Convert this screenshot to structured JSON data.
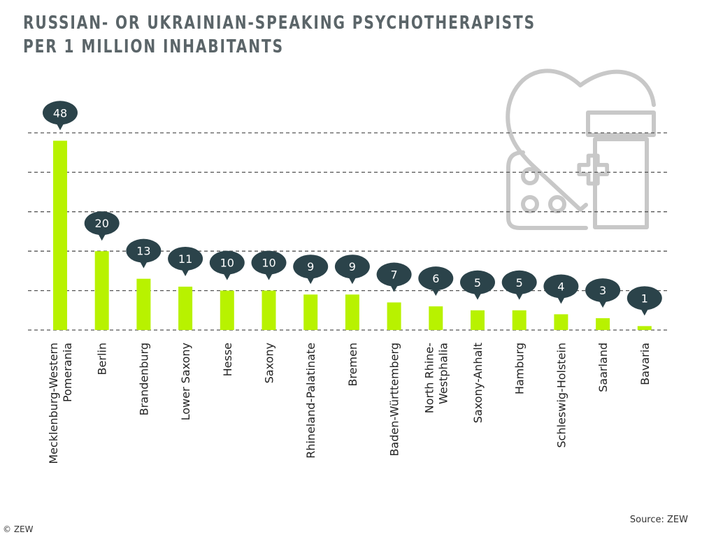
{
  "chart_data": {
    "type": "bar",
    "title_lines": [
      "RUSSIAN- OR UKRAINIAN-SPEAKING PSYCHOTHERAPISTS",
      "PER 1 MILLION INHABITANTS"
    ],
    "categories": [
      "Mecklenburg-Western Pomerania",
      "Berlin",
      "Brandenburg",
      "Lower Saxony",
      "Hesse",
      "Saxony",
      "Rhineland-Palatinate",
      "Bremen",
      "Baden-Württemberg",
      "North Rhine-Westphalia",
      "Saxony-Anhalt",
      "Hamburg",
      "Schleswig-Holstein",
      "Saarland",
      "Bavaria"
    ],
    "category_lines": [
      [
        "Mecklenburg-Western",
        "Pomerania"
      ],
      [
        "Berlin"
      ],
      [
        "Brandenburg"
      ],
      [
        "Lower Saxony"
      ],
      [
        "Hesse"
      ],
      [
        "Saxony"
      ],
      [
        "Rhineland-Palatinate"
      ],
      [
        "Bremen"
      ],
      [
        "Baden-Württemberg"
      ],
      [
        "North Rhine-",
        "Westphalia"
      ],
      [
        "Saxony-Anhalt"
      ],
      [
        "Hamburg"
      ],
      [
        "Schleswig-Holstein"
      ],
      [
        "Saarland"
      ],
      [
        "Bavaria"
      ]
    ],
    "values": [
      48,
      20,
      13,
      11,
      10,
      10,
      9,
      9,
      7,
      6,
      5,
      5,
      4,
      3,
      1
    ],
    "ylim": [
      0,
      50
    ],
    "gridlines": [
      10,
      20,
      30,
      40,
      50
    ],
    "grid": true,
    "xlabel": "",
    "ylabel": "",
    "colors": {
      "bar": "#b8f200",
      "bubble": "#2b434a",
      "grid": "#555555",
      "icon": "#c8c8c8"
    }
  },
  "source": "Source: ZEW",
  "copyright": "© ZEW"
}
